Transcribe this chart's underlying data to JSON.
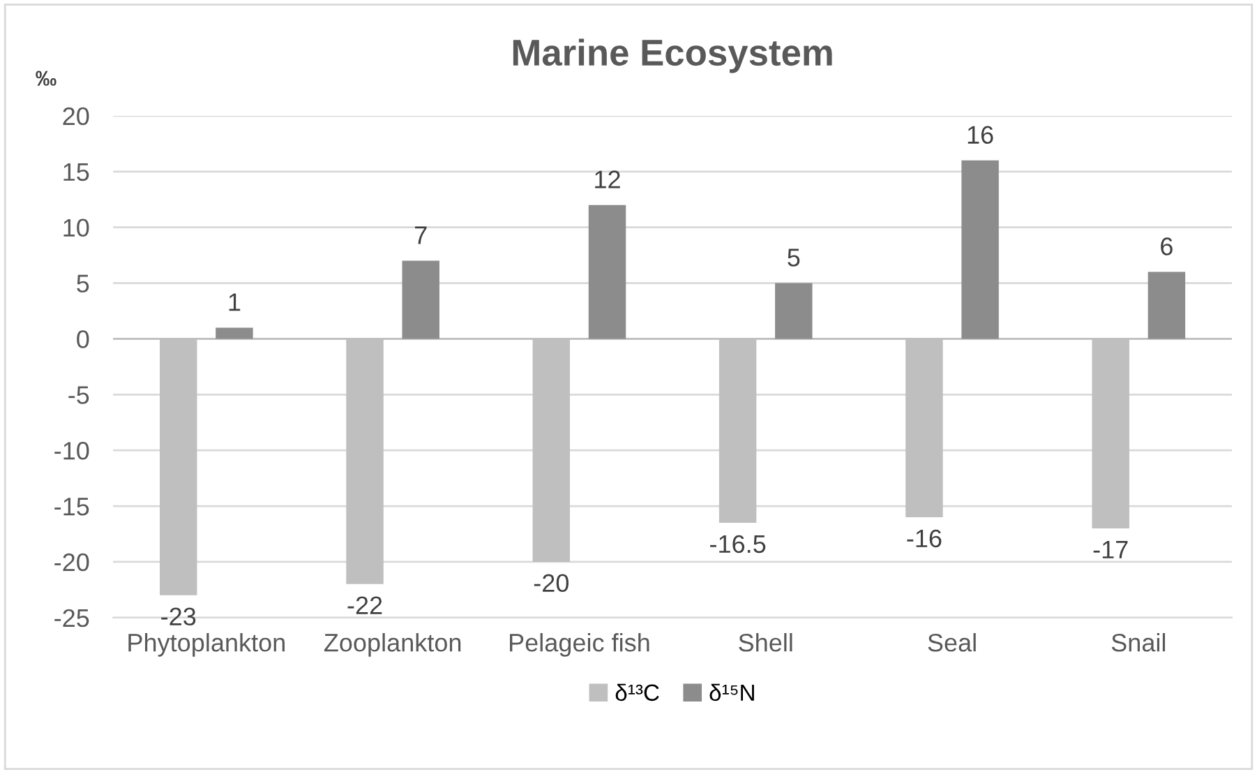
{
  "chart_data": {
    "type": "bar",
    "title": "Marine Ecosystem",
    "ylabel": "‰",
    "categories": [
      "Phytoplankton",
      "Zooplankton",
      "Pelageic fish",
      "Shell",
      "Seal",
      "Snail"
    ],
    "series": [
      {
        "name": "δ¹³C",
        "color": "#bfbfbf",
        "values": [
          -23,
          -22,
          -20,
          -16.5,
          -16,
          -17
        ]
      },
      {
        "name": "δ¹⁵N",
        "color": "#8c8c8c",
        "values": [
          1,
          7,
          12,
          5,
          16,
          6
        ]
      }
    ],
    "ylim": [
      -25,
      20
    ],
    "yticks": [
      -25,
      -20,
      -15,
      -10,
      -5,
      0,
      5,
      10,
      15,
      20
    ],
    "grid": "y",
    "legend": "bottom",
    "data_labels": true
  }
}
